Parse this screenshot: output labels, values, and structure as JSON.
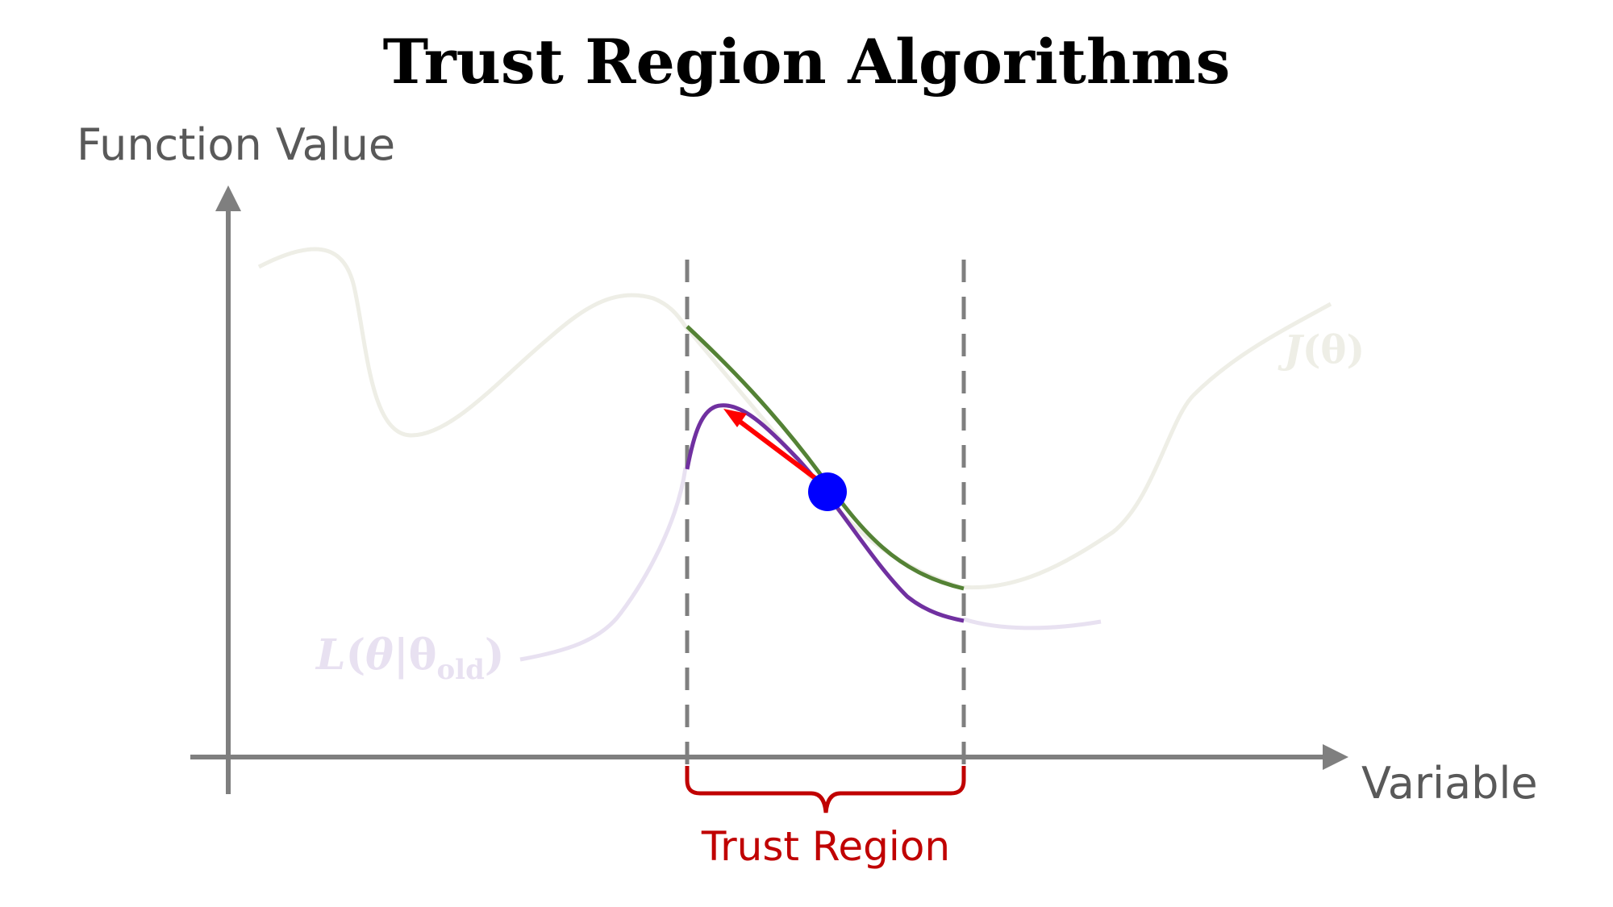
{
  "title": "Trust Region Algorithms",
  "axes": {
    "y_label": "Function Value",
    "x_label": "Variable"
  },
  "trust_region": {
    "label": "Trust Region"
  },
  "curves": {
    "objective": {
      "label_main": "J",
      "label_arg": "(θ)"
    },
    "surrogate": {
      "label_main": "L",
      "label_arg_open": "(",
      "label_theta": "θ",
      "label_bar": "|θ",
      "label_sub": "old",
      "label_close": ")"
    }
  },
  "colors": {
    "title": "#000000",
    "axis": "#7f7f7f",
    "objective": "#eeeee6",
    "surrogate_faint": "#e8e1f1",
    "local_objective": "#548235",
    "local_surrogate": "#7030a0",
    "step_arrow": "#ff0000",
    "current_point": "#0000ff",
    "trust_region": "#c00000"
  }
}
